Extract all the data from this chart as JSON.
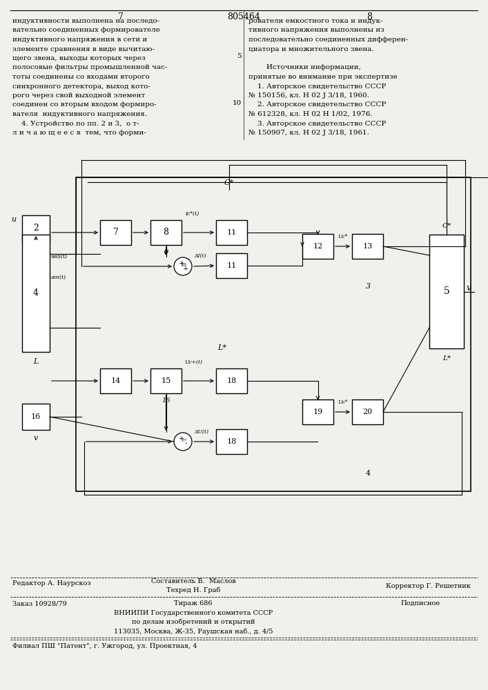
{
  "page_number_left": "7",
  "page_number_center": "805464",
  "page_number_right": "8",
  "left_column_text": [
    "индуктивности выполнена на последо-",
    "вательно соединенных формирователе",
    "индуктивного напряжения в сети и",
    "элементе сравнения в виде вычитаю-",
    "щего звена, выходы которых через",
    "полосовые фильтры промышленной час-",
    "тоты соединены со входами второго",
    "синхронного детектора, выход кото-",
    "рого через свой выходной элемент",
    "соединен со вторым входом формиро-",
    "вателя  индуктивного напряжения.",
    "    4. Устройство по пп. 2 и 3,  о т-",
    "л и ч а ю щ е е с я  тем, что форми-"
  ],
  "right_column_text_line1": "рователи емкостного тока и индук-",
  "right_column_text_line2": "тивного напряжения выполнены из",
  "right_column_text_line3": "последовательно соединенных дифферен-",
  "right_column_text_line4": "циатора и множительного звена.",
  "right_col_sources_header": "        Источники информации,",
  "right_col_sources_intro": "принятые во внимание при экспертизе",
  "right_col_ref1a": "    1. Авторское свидетельство СССР",
  "right_col_ref1b": "№ 150156, кл. Н 02 J 3/18, 1960.",
  "right_col_ref2a": "    2. Авторское свидетельство СССР",
  "right_col_ref2b": "№ 612328, кл. Н 02 Н 1/02, 1976.",
  "right_col_ref3a": "    3. Авторское свидетельство СССР",
  "right_col_ref3b": "№ 150907, кл. Н 02 J 3/18, 1961.",
  "line_num_5": "5",
  "line_num_10": "10",
  "footer_editor": "Редактор А. Наурскоз",
  "footer_author_top": "Составитель В.  Маслов",
  "footer_tech_bot": "Техред Н. Граб",
  "footer_corrector": "Корректор Г. Решетник",
  "footer_order": "Заказ 10928/79",
  "footer_tirazh": "Тираж 686",
  "footer_podpisnoe": "Подписное",
  "footer_vnipi": "ВНИИПИ Государственного комитета СССР",
  "footer_po_delam": "по делам изобретений и открытий",
  "footer_address": "113035, Москва, Ж-35, Раушская наб., д. 4/5",
  "footer_filial": "Филиал ПШ \"Патент\", г. Ужгород, ул. Проектная, 4",
  "bg_color": "#f0f0ec"
}
